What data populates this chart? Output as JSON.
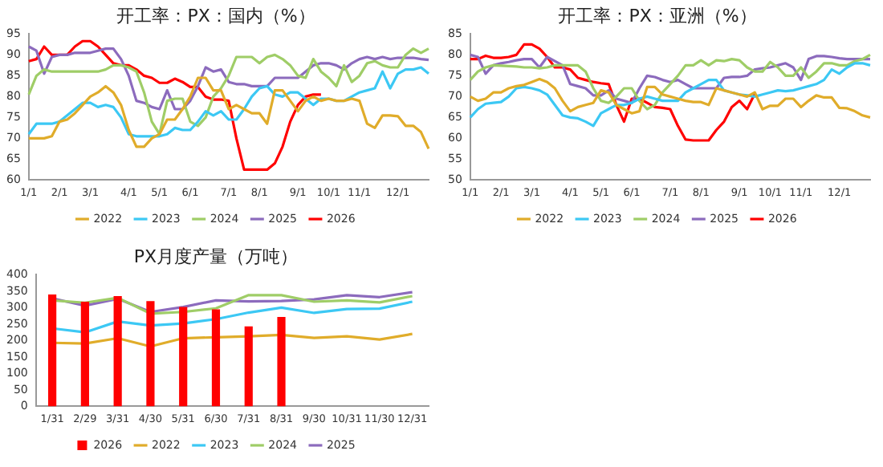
{
  "chart_data": [
    {
      "type": "line",
      "title": "开工率：PX：国内（%）",
      "categories": [
        "1/1",
        null,
        null,
        null,
        "2/1",
        null,
        null,
        null,
        "3/1",
        null,
        null,
        null,
        null,
        "4/1",
        null,
        null,
        null,
        "5/1",
        null,
        null,
        null,
        "6/1",
        null,
        null,
        null,
        null,
        "7/1",
        null,
        null,
        null,
        "8/1",
        null,
        null,
        null,
        null,
        "9/1",
        null,
        null,
        null,
        "10/1",
        null,
        null,
        null,
        "11/1",
        null,
        null,
        null,
        null,
        "12/1",
        null,
        null,
        null,
        null
      ],
      "ylim": [
        60,
        95
      ],
      "yticks": [
        60,
        65,
        70,
        75,
        80,
        85,
        90,
        95
      ],
      "legend": "bottom",
      "marker": "none",
      "series": [
        {
          "name": "2022",
          "color": "#e0ac2a",
          "values": [
            70,
            70,
            70,
            70.5,
            74,
            74.5,
            76,
            78,
            80,
            81,
            82.5,
            81,
            78,
            72,
            68,
            68,
            70,
            71,
            74.5,
            74.5,
            77,
            80,
            84.5,
            84.5,
            81.5,
            81.5,
            77,
            78,
            77,
            76,
            76,
            73.5,
            81.5,
            81.5,
            79,
            76.5,
            79,
            80,
            79,
            79.5,
            79,
            79,
            79.5,
            79,
            73.5,
            72.5,
            75.5,
            75.5,
            75.3,
            73,
            73,
            71.5,
            67.5
          ]
        },
        {
          "name": "2023",
          "color": "#3cc8f4",
          "values": [
            71,
            73.5,
            73.5,
            73.5,
            74,
            75.5,
            77,
            78.5,
            78.5,
            77.5,
            78,
            77.5,
            75,
            71,
            70.5,
            70.5,
            70.5,
            70.5,
            71,
            72.5,
            72,
            72,
            74,
            76.5,
            75.5,
            76.5,
            74.5,
            74.5,
            77,
            80,
            82,
            82.5,
            80.5,
            80,
            81,
            81,
            79.5,
            78,
            79.5,
            79.5,
            79,
            79,
            80,
            81,
            81.5,
            82,
            86,
            82,
            85.5,
            86.5,
            86.5,
            87,
            85.5
          ]
        },
        {
          "name": "2024",
          "color": "#9fcd67",
          "values": [
            80.5,
            85,
            86.5,
            86,
            86,
            86,
            86,
            86,
            86,
            86,
            86.5,
            87.5,
            87.5,
            87,
            86,
            81,
            74,
            71,
            79,
            79.5,
            79.5,
            74,
            73,
            75,
            80,
            82,
            85,
            89.5,
            89.5,
            89.5,
            88,
            89.5,
            90,
            89,
            87.5,
            85,
            84.5,
            89,
            86,
            84.5,
            82.5,
            87.5,
            83.5,
            85,
            88,
            88.5,
            87.5,
            87,
            87,
            90,
            91.5,
            90.5,
            91.5
          ]
        },
        {
          "name": "2025",
          "color": "#8c6bbd",
          "values": [
            92,
            91,
            85.5,
            89.5,
            90,
            90,
            90.5,
            90.5,
            90.5,
            91,
            91.5,
            91.5,
            89,
            85,
            79,
            78.5,
            77.5,
            77,
            81.5,
            77,
            77,
            79,
            82.5,
            87,
            86,
            86.5,
            83.5,
            83,
            83,
            82.5,
            82.5,
            82.5,
            84.5,
            84.5,
            84.5,
            84.5,
            86,
            87.5,
            88,
            88,
            87.5,
            86.5,
            88,
            89,
            89.5,
            89,
            89.5,
            89,
            89.3,
            89.3,
            89.3,
            89,
            88.8
          ]
        },
        {
          "name": "2026",
          "color": "#ff0000",
          "values": [
            88.5,
            89,
            92,
            90,
            90,
            90,
            92,
            93.3,
            93.3,
            92,
            90,
            88,
            87.5,
            87.5,
            86.5,
            85,
            84.5,
            83.3,
            83.3,
            84.3,
            83.5,
            82.3,
            82.3,
            80,
            79.3,
            79.3,
            79,
            70,
            62.5,
            62.5,
            62.5,
            62.5,
            64,
            68,
            74,
            78,
            80,
            80.5,
            80.5,
            null,
            null,
            null,
            null,
            null,
            null,
            null,
            null,
            null,
            null,
            null,
            null,
            null,
            null
          ]
        }
      ]
    },
    {
      "type": "line",
      "title": "开工率：PX：亚洲（%）",
      "categories": [
        "1/1",
        null,
        null,
        null,
        "2/1",
        null,
        null,
        null,
        "3/1",
        null,
        null,
        null,
        null,
        "4/1",
        null,
        null,
        null,
        "5/1",
        null,
        null,
        null,
        "6/1",
        null,
        null,
        null,
        null,
        "7/1",
        null,
        null,
        null,
        "8/1",
        null,
        null,
        null,
        null,
        "9/1",
        null,
        null,
        null,
        "10/1",
        null,
        null,
        null,
        "11/1",
        null,
        null,
        null,
        null,
        "12/1",
        null,
        null,
        null,
        null
      ],
      "ylim": [
        50,
        85
      ],
      "yticks": [
        50,
        55,
        60,
        65,
        70,
        75,
        80,
        85
      ],
      "legend": "bottom",
      "marker": "none",
      "series": [
        {
          "name": "2022",
          "color": "#e0ac2a",
          "values": [
            70,
            69,
            69.5,
            71,
            71,
            72,
            72.5,
            72.8,
            73.5,
            74.2,
            73.5,
            72,
            69,
            66.5,
            67.5,
            68,
            68.5,
            71.5,
            71,
            68,
            67,
            66,
            66.5,
            72.3,
            72.3,
            70.5,
            70,
            69.5,
            69,
            68.7,
            68.7,
            68,
            72,
            71.5,
            71,
            70.5,
            70,
            71,
            67,
            67.8,
            67.8,
            69.5,
            69.5,
            67.5,
            69,
            70.3,
            69.8,
            69.8,
            67.3,
            67.2,
            66.5,
            65.5,
            65
          ]
        },
        {
          "name": "2023",
          "color": "#3cc8f4",
          "values": [
            65,
            67,
            68.3,
            68.5,
            68.7,
            70,
            72,
            72.3,
            72,
            71.5,
            70.5,
            68,
            65.5,
            65,
            64.8,
            64,
            63,
            66,
            67,
            68,
            68,
            68.5,
            69.5,
            70,
            69.5,
            69,
            69,
            69,
            71,
            72,
            73,
            74,
            74,
            71.5,
            71,
            70.5,
            70.3,
            70,
            70.5,
            71,
            71.5,
            71.3,
            71.5,
            72,
            72.5,
            73,
            74,
            76.5,
            75.5,
            77,
            78,
            78,
            77.5
          ]
        },
        {
          "name": "2024",
          "color": "#9fcd67",
          "values": [
            74,
            76,
            77,
            77.5,
            77.4,
            77.3,
            77.2,
            77,
            77,
            76.8,
            77,
            77.5,
            77.5,
            77.5,
            77.5,
            76,
            72,
            69,
            68.5,
            70,
            72,
            72,
            69,
            67,
            68,
            71,
            73,
            75,
            77.5,
            77.5,
            78.7,
            77.5,
            78.7,
            78.5,
            79,
            78.7,
            77,
            76,
            76,
            78.3,
            77,
            75,
            75,
            77,
            74.5,
            76,
            78,
            78,
            77.5,
            77.5,
            78.5,
            79,
            80
          ]
        },
        {
          "name": "2025",
          "color": "#8c6bbd",
          "values": [
            80,
            79.5,
            75.5,
            77.5,
            78,
            78.3,
            78.7,
            79,
            79,
            77,
            79.5,
            78.5,
            77.5,
            73,
            72.5,
            72,
            70.3,
            70.3,
            71.5,
            69.5,
            69,
            68.5,
            72,
            75,
            74.7,
            74,
            73.5,
            74,
            73,
            72,
            72,
            72,
            72,
            74.5,
            74.7,
            74.7,
            75,
            76.5,
            76.8,
            77,
            77.5,
            78,
            77,
            74,
            79,
            79.7,
            79.7,
            79.5,
            79.2,
            79,
            79,
            79,
            79
          ]
        },
        {
          "name": "2026",
          "color": "#ff0000",
          "values": [
            79,
            79,
            79.8,
            79.3,
            79.3,
            79.5,
            80,
            82.5,
            82.5,
            81.5,
            79.5,
            77,
            77,
            76.5,
            74.5,
            74,
            73.5,
            73.2,
            73,
            68,
            64,
            69.5,
            69.5,
            68.5,
            67.5,
            67.3,
            67,
            63,
            59.7,
            59.5,
            59.5,
            59.5,
            62,
            64,
            67.5,
            69,
            67,
            70.7,
            null,
            null,
            null,
            null,
            null,
            null,
            null,
            null,
            null,
            null,
            null,
            null,
            null,
            null,
            null
          ]
        }
      ]
    },
    {
      "type": "bar",
      "title": "PX月度产量（万吨）",
      "categories": [
        "1/31",
        "2/29",
        "3/31",
        "4/30",
        "5/31",
        "6/30",
        "7/31",
        "8/31",
        "9/30",
        "10/31",
        "11/30",
        "12/31"
      ],
      "ylim": [
        0,
        400
      ],
      "yticks": [
        0,
        50,
        100,
        150,
        200,
        250,
        300,
        350,
        400
      ],
      "legend": "bottom",
      "marker": "none",
      "series": [
        {
          "name": "2026",
          "type": "bar",
          "color": "#ff0000",
          "values": [
            340,
            318,
            335,
            320,
            302,
            295,
            243,
            272,
            null,
            null,
            null,
            null
          ]
        },
        {
          "name": "2022",
          "type": "line",
          "color": "#e0ac2a",
          "values": [
            193,
            191,
            207,
            182,
            207,
            210,
            213,
            217,
            208,
            213,
            203,
            220
          ]
        },
        {
          "name": "2023",
          "type": "line",
          "color": "#3cc8f4",
          "values": [
            237,
            225,
            258,
            246,
            252,
            265,
            285,
            300,
            284,
            296,
            297,
            318
          ]
        },
        {
          "name": "2024",
          "type": "line",
          "color": "#9fcd67",
          "values": [
            322,
            315,
            330,
            282,
            287,
            298,
            338,
            338,
            318,
            322,
            316,
            335
          ]
        },
        {
          "name": "2025",
          "type": "line",
          "color": "#8c6bbd",
          "values": [
            328,
            306,
            327,
            287,
            302,
            322,
            319,
            320,
            325,
            338,
            332,
            347
          ]
        }
      ]
    }
  ]
}
